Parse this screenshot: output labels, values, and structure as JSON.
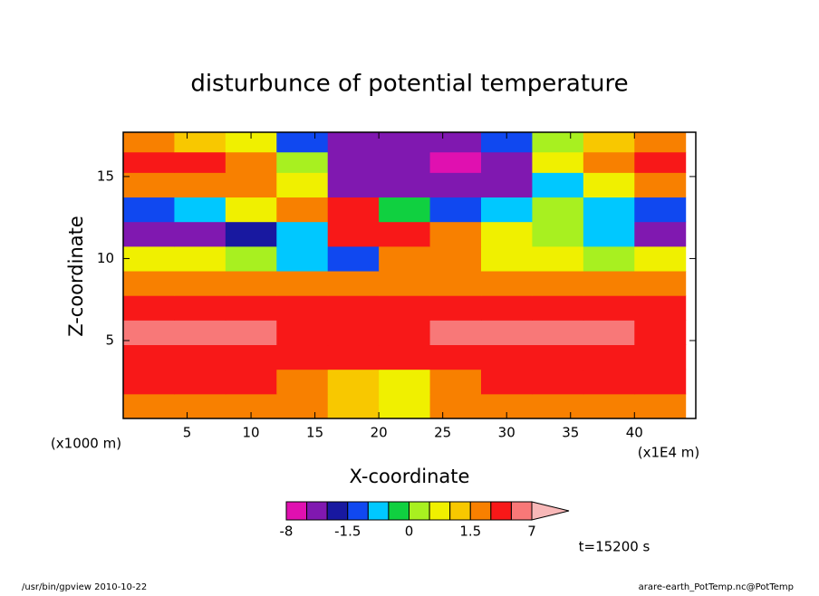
{
  "chart_data": {
    "type": "contour",
    "title": "disturbunce of potential temperature",
    "xlabel": "X-coordinate",
    "ylabel": "Z-coordinate",
    "yunit": "(x1000 m)",
    "xunit": "(x1E4 m)",
    "xlim": [
      0,
      44.8
    ],
    "ylim": [
      0.25,
      17.7
    ],
    "xticks": [
      5,
      10,
      15,
      20,
      25,
      30,
      35,
      40
    ],
    "yticks": [
      5,
      10,
      15
    ],
    "x": [
      2,
      6,
      10,
      14,
      18,
      22,
      26,
      30,
      34,
      38,
      42
    ],
    "y": [
      1,
      2.5,
      4,
      5.5,
      7,
      8.5,
      10,
      11.5,
      13,
      14.5,
      16,
      17
    ],
    "z": [
      [
        1.8,
        1.8,
        1.8,
        1.8,
        1.2,
        0.8,
        1.8,
        1.8,
        1.8,
        1.8,
        1.8
      ],
      [
        3,
        2.5,
        2,
        1.8,
        1.3,
        0.8,
        1.8,
        2.5,
        3,
        3,
        3
      ],
      [
        3,
        3,
        3,
        3,
        3,
        2.5,
        3,
        3,
        3,
        3,
        3
      ],
      [
        5,
        5,
        5,
        3,
        3,
        3,
        5,
        5,
        5,
        4.5,
        3
      ],
      [
        3,
        3,
        3,
        3,
        3,
        3,
        3,
        3,
        3,
        3,
        3
      ],
      [
        1.8,
        1.8,
        1.8,
        1.8,
        1.8,
        1.8,
        1.8,
        1.8,
        1.8,
        1.8,
        1.8
      ],
      [
        0.8,
        0.5,
        0.3,
        -1,
        -1.2,
        1.7,
        1.8,
        0.8,
        0.5,
        0.3,
        0.5
      ],
      [
        -2.5,
        -2.5,
        -2,
        -0.8,
        2.5,
        2,
        1.8,
        0.8,
        0.3,
        -1,
        -2.5
      ],
      [
        -1.2,
        -0.7,
        0.8,
        1.8,
        2.5,
        -0.3,
        -1.2,
        -0.7,
        0.3,
        -0.7,
        -1.2
      ],
      [
        1.8,
        1.8,
        1.8,
        0.8,
        -2.5,
        -2.5,
        -2.5,
        -2.2,
        -0.7,
        0.8,
        1.8
      ],
      [
        2.5,
        2.5,
        1.8,
        0.3,
        -3,
        -2.5,
        -5,
        -2.5,
        0.8,
        1.8,
        2.5
      ],
      [
        1.8,
        1.3,
        0.8,
        -1.2,
        -2.5,
        -2.5,
        -2.5,
        -1.5,
        0.3,
        1.3,
        1.8
      ]
    ],
    "colorbar": {
      "levels": [
        -8,
        -4,
        -2,
        -1.5,
        -1,
        -0.5,
        0,
        0.5,
        1,
        1.5,
        2,
        4,
        7
      ],
      "colors": [
        "#e010b0",
        "#8018b0",
        "#1818a0",
        "#1048f0",
        "#00c8ff",
        "#10d040",
        "#a8f020",
        "#f0f000",
        "#f8c800",
        "#f88000",
        "#f81818",
        "#f87878"
      ],
      "over_color": "#f8b8b8",
      "ticks": [
        -8,
        -1.5,
        0,
        1.5,
        7
      ]
    },
    "annotation": "t=15200 s",
    "footer_left": "/usr/bin/gpview  2010-10-22",
    "footer_right": "arare-earth_PotTemp.nc@PotTemp"
  }
}
